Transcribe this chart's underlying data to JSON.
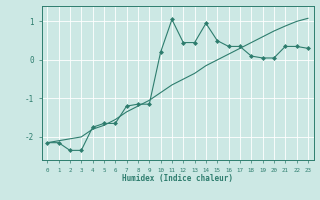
{
  "xlabel": "Humidex (Indice chaleur)",
  "ylabel": "",
  "background_color": "#cce8e4",
  "line_color": "#2e7d6e",
  "grid_color": "#ffffff",
  "x_data": [
    0,
    1,
    2,
    3,
    4,
    5,
    6,
    7,
    8,
    9,
    10,
    11,
    12,
    13,
    14,
    15,
    16,
    17,
    18,
    19,
    20,
    21,
    22,
    23
  ],
  "y_curve": [
    -2.15,
    -2.15,
    -2.35,
    -2.35,
    -1.75,
    -1.65,
    -1.65,
    -1.2,
    -1.15,
    -1.15,
    0.2,
    1.05,
    0.45,
    0.45,
    0.95,
    0.5,
    0.35,
    0.35,
    0.1,
    0.05,
    0.05,
    0.35,
    0.35,
    0.3
  ],
  "y_line": [
    -2.15,
    -2.1,
    -2.05,
    -2.0,
    -1.8,
    -1.7,
    -1.55,
    -1.35,
    -1.2,
    -1.05,
    -0.85,
    -0.65,
    -0.5,
    -0.35,
    -0.15,
    0.0,
    0.15,
    0.3,
    0.45,
    0.6,
    0.75,
    0.88,
    1.0,
    1.08
  ],
  "ylim": [
    -2.6,
    1.4
  ],
  "yticks": [
    -2,
    -1,
    0,
    1
  ],
  "xlim": [
    -0.5,
    23.5
  ],
  "figsize": [
    3.2,
    2.0
  ],
  "dpi": 100
}
